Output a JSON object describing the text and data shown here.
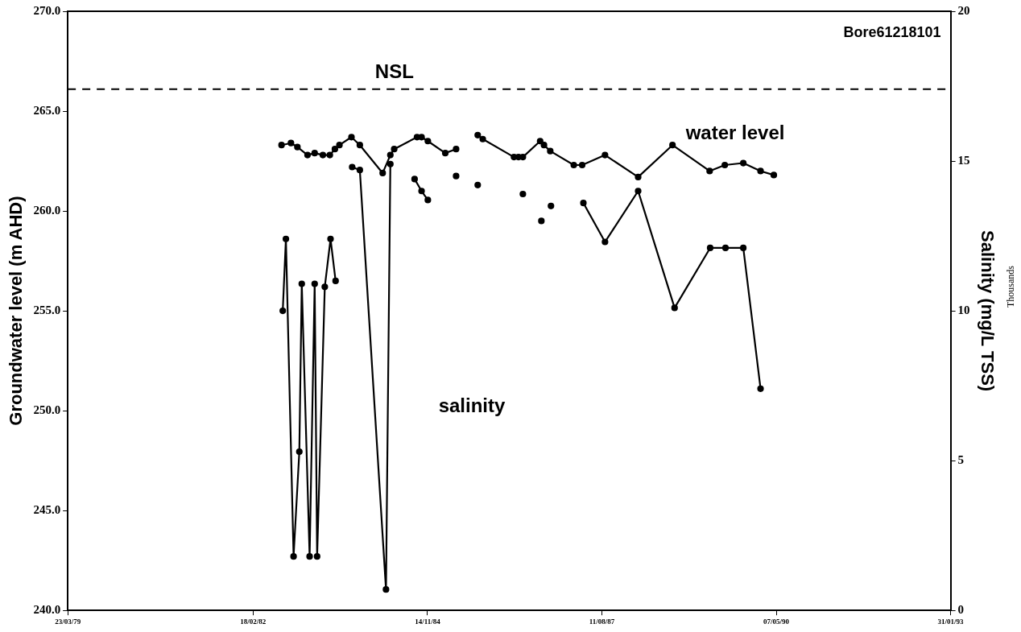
{
  "chart_data": {
    "type": "line",
    "ylabel": "Groundwater level (m AHD)",
    "y2label": "Salinity (mg/L TSS)",
    "annotations": [
      "Bore61218101",
      "Thousands"
    ],
    "xlim": [
      "1979-03-23",
      "1993-01-31"
    ],
    "xticks": [
      {
        "value": "1979-03-23",
        "label": "23/03/79"
      },
      {
        "value": "1982-02-18",
        "label": "18/02/82"
      },
      {
        "value": "1984-11-14",
        "label": "14/11/84"
      },
      {
        "value": "1987-08-11",
        "label": "11/08/87"
      },
      {
        "value": "1990-05-07",
        "label": "07/05/90"
      },
      {
        "value": "1993-01-31",
        "label": "31/01/93"
      }
    ],
    "ylim": [
      240,
      270
    ],
    "yticks": [
      {
        "value": 240,
        "label": "240.0"
      },
      {
        "value": 245,
        "label": "245.0"
      },
      {
        "value": 250,
        "label": "250.0"
      },
      {
        "value": 255,
        "label": "255.0"
      },
      {
        "value": 260,
        "label": "260.0"
      },
      {
        "value": 265,
        "label": "265.0"
      },
      {
        "value": 270,
        "label": "270.0"
      }
    ],
    "y2lim": [
      0,
      20
    ],
    "y2ticks": [
      0,
      5,
      10,
      15,
      20
    ],
    "ref_lines": [
      {
        "axis": "y",
        "value": 266.1,
        "label": "NSL",
        "color": "#000000",
        "line_style": "dashed"
      }
    ],
    "grid": false,
    "legend": false,
    "marker": "circle",
    "line_style": "solid",
    "series": [
      {
        "name": "water level",
        "color": "#000000",
        "x": [
          "1982-07-31",
          "1982-09-23",
          "1982-10-30",
          "1982-12-27",
          "1983-02-06",
          "1983-03-25",
          "1983-05-04",
          "1983-06-02",
          "1983-06-28",
          "1983-09-05",
          "1983-10-23",
          "1984-03-02",
          "1984-04-15",
          "1984-05-07",
          "1984-09-15",
          "1984-10-11",
          "1984-11-16",
          "1985-02-24",
          "1985-04-27",
          "1985-07-02",
          "1985-08-29",
          "1985-09-27",
          "1986-03-25",
          "1986-04-20",
          "1986-05-15",
          "1986-08-22",
          "1986-09-13",
          "1986-10-19",
          "1987-03-03",
          "1987-04-20",
          "1987-08-29",
          "1988-03-06",
          "1988-09-19",
          "1989-04-20",
          "1989-07-16",
          "1989-10-30",
          "1990-02-06",
          "1990-04-23"
        ],
        "values": [
          263.3,
          263.4,
          263.2,
          262.8,
          262.9,
          262.8,
          262.8,
          263.1,
          263.3,
          263.7,
          263.3,
          261.9,
          262.8,
          263.1,
          263.7,
          263.7,
          263.5,
          262.9,
          263.1,
          null,
          263.8,
          263.6,
          262.7,
          262.7,
          262.7,
          263.5,
          263.3,
          263.0,
          262.3,
          262.3,
          262.8,
          261.7,
          263.3,
          262.0,
          262.3,
          262.4,
          262.0,
          261.8
        ]
      },
      {
        "name": "salinity",
        "color": "#000000",
        "axis": "y2",
        "x": [
          "1982-08-07",
          "1982-08-25",
          "1982-10-08",
          "1982-11-10",
          "1982-11-24",
          "1983-01-08",
          "1983-02-06",
          "1983-02-20",
          "1983-04-05",
          "1983-05-08",
          "1983-06-06",
          "1983-07-20",
          "1983-09-09",
          "1983-10-23",
          "1984-03-21",
          "1984-04-15",
          "1984-07-01",
          "1984-09-01",
          "1984-10-11",
          "1984-11-16",
          "1985-02-06",
          "1985-04-27",
          "1985-07-02",
          "1985-08-29",
          "1985-11-24",
          "1986-05-15",
          "1986-07-02",
          "1986-08-29",
          "1986-09-27",
          "1986-10-23",
          "1987-01-01",
          "1987-04-27",
          "1987-08-29",
          "1988-03-06",
          "1988-10-01",
          "1989-04-23",
          "1989-07-20",
          "1989-10-30",
          "1990-02-06"
        ],
        "values": [
          10.0,
          12.4,
          1.8,
          5.3,
          10.9,
          1.8,
          10.9,
          1.8,
          10.8,
          12.4,
          11.0,
          null,
          14.8,
          14.7,
          0.7,
          14.9,
          null,
          14.4,
          14.0,
          13.7,
          null,
          14.5,
          null,
          14.2,
          null,
          13.9,
          null,
          13.0,
          null,
          13.5,
          null,
          13.6,
          12.3,
          14.0,
          10.1,
          12.1,
          12.1,
          12.1,
          7.4
        ]
      }
    ]
  }
}
